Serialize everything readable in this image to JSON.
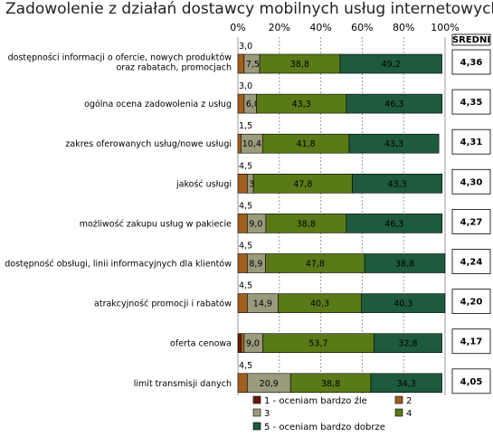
{
  "title": "Zadowolenie z działań dostawcy mobilnych usług internetowych",
  "avg_header": "ŚREDNI",
  "chart_data": {
    "type": "bar",
    "orientation": "horizontal",
    "stacked": "percent",
    "title": "Zadowolenie z działań dostawcy mobilnych usług internetowych",
    "xlim": [
      0,
      100
    ],
    "xticks": [
      "0%",
      "20%",
      "40%",
      "60%",
      "80%",
      "100%"
    ],
    "grid": "vertical dashed",
    "categories": [
      [
        "dostępności informacji o ofercie, nowych produktów",
        "oraz rabatach, promocjach"
      ],
      [
        "ogólna ocena zadowolenia z usług"
      ],
      [
        "zakres oferowanych usług/nowe usługi"
      ],
      [
        "jakość usługi"
      ],
      [
        "możliwość zakupu usług w pakiecie"
      ],
      [
        "dostępność obsługi, linii informacyjnych dla klientów"
      ],
      [
        "atrakcyjność promocji i rabatów"
      ],
      [
        "oferta cenowa"
      ],
      [
        "limit transmisji danych"
      ]
    ],
    "series": [
      {
        "name": "1 - oceniam bardzo źle",
        "color": "#6b1a0c",
        "values": [
          0,
          0,
          0,
          0,
          0,
          0,
          0,
          1.5,
          0
        ],
        "labels": [
          "",
          "",
          "",
          "",
          "",
          "",
          "",
          "",
          ""
        ]
      },
      {
        "name": "2",
        "color": "#a0601e",
        "values": [
          3.0,
          3.0,
          1.5,
          4.5,
          4.5,
          4.5,
          4.5,
          1.5,
          4.5
        ],
        "labels": [
          "3,0",
          "3,0",
          "1,5",
          "4,5",
          "4,5",
          "4,5",
          "4,5",
          "",
          "4,5"
        ]
      },
      {
        "name": "3",
        "color": "#9c9a7c",
        "values": [
          7.5,
          6.0,
          10.4,
          3.0,
          9.0,
          8.9,
          14.9,
          9.0,
          20.9
        ],
        "labels": [
          "7,5",
          "6,0",
          "10,4",
          "3,0",
          "9,0",
          "8,9",
          "14,9",
          "9,0",
          "20,9"
        ]
      },
      {
        "name": "4",
        "color": "#5a7a18",
        "values": [
          38.8,
          43.3,
          41.8,
          47.8,
          38.8,
          47.8,
          40.3,
          53.7,
          38.8
        ],
        "labels": [
          "38,8",
          "43,3",
          "41,8",
          "47,8",
          "38,8",
          "47,8",
          "40,3",
          "53,7",
          "38,8"
        ]
      },
      {
        "name": "5 - oceniam bardzo dobrze",
        "color": "#1e5a3c",
        "values": [
          49.2,
          46.3,
          43.3,
          43.3,
          46.3,
          38.8,
          40.3,
          32.8,
          34.3
        ],
        "labels": [
          "49,2",
          "46,3",
          "43,3",
          "43,3",
          "46,3",
          "38,8",
          "40,3",
          "32,8",
          "34,3"
        ]
      }
    ],
    "averages": [
      "4,36",
      "4,35",
      "4,31",
      "4,30",
      "4,27",
      "4,24",
      "4,20",
      "4,17",
      "4,05"
    ],
    "legend_order": [
      0,
      1,
      2,
      3,
      4
    ],
    "legend_position": "bottom"
  }
}
